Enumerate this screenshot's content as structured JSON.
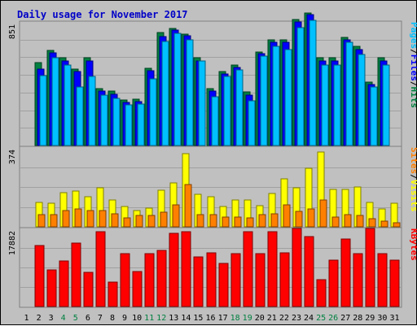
{
  "chart_data": {
    "type": "bar",
    "title": "Daily usage for November 2017",
    "categories": [
      "1",
      "2",
      "3",
      "4",
      "5",
      "6",
      "7",
      "8",
      "9",
      "10",
      "11",
      "12",
      "13",
      "14",
      "15",
      "16",
      "17",
      "18",
      "19",
      "20",
      "21",
      "22",
      "23",
      "24",
      "25",
      "26",
      "27",
      "28",
      "29",
      "30",
      "31"
    ],
    "weekend_days": [
      "4",
      "5",
      "11",
      "12",
      "18",
      "19",
      "25",
      "26"
    ],
    "panels": [
      {
        "name": "top",
        "ymax": 851,
        "ymax_label": "851",
        "side_label": [
          "Pages",
          "/",
          "Files",
          "/",
          "Hits"
        ],
        "series": [
          {
            "name": "Hits",
            "color": "#008040",
            "values": [
              0,
              596,
              680,
              628,
              545,
              628,
              406,
              392,
              326,
              333,
              554,
              812,
              841,
              800,
              628,
              406,
              532,
              579,
              382,
              670,
              758,
              758,
              904,
              953,
              628,
              628,
              776,
              712,
              453,
              628,
              0
            ]
          },
          {
            "name": "Files",
            "color": "#0000ff",
            "values": [
              0,
              549,
              663,
              609,
              529,
              609,
              390,
              369,
              311,
              312,
              538,
              780,
              825,
              786,
              609,
              391,
              513,
              560,
              360,
              656,
              739,
              738,
              888,
              937,
              609,
              609,
              757,
              689,
              436,
              609,
              0
            ]
          },
          {
            "name": "Pages",
            "color": "#00c0ff",
            "values": [
              0,
              502,
              628,
              579,
              421,
              495,
              361,
              338,
              291,
              295,
              476,
              746,
              806,
              758,
              609,
              352,
              494,
              541,
              322,
              639,
              712,
              689,
              847,
              899,
              579,
              579,
              739,
              651,
              418,
              579,
              0
            ]
          }
        ]
      },
      {
        "name": "middle",
        "ymax": 374,
        "ymax_label": "374",
        "side_label": [
          "Sites",
          "/",
          "Visits"
        ],
        "series": [
          {
            "name": "Visits",
            "color": "#ffff00",
            "values": [
              0,
              122,
              117,
              172,
              177,
              150,
              194,
              133,
              100,
              83,
              94,
              183,
              218,
              367,
              161,
              150,
              100,
              133,
              133,
              105,
              167,
              238,
              194,
              294,
              372,
              187,
              187,
              200,
              122,
              89,
              117
            ]
          },
          {
            "name": "Sites",
            "color": "#ff8000",
            "values": [
              0,
              61,
              61,
              83,
              89,
              83,
              83,
              67,
              44,
              56,
              56,
              72,
              111,
              211,
              61,
              61,
              50,
              50,
              44,
              61,
              67,
              111,
              78,
              89,
              133,
              50,
              61,
              56,
              39,
              28,
              22
            ]
          }
        ]
      },
      {
        "name": "bottom",
        "ymax": 17882,
        "ymax_label": "17882",
        "side_label": [
          "KBytes"
        ],
        "series": [
          {
            "name": "KBytes",
            "color": "#ff0000",
            "values": [
              0,
              14850,
              8990,
              11140,
              15490,
              8340,
              18280,
              6010,
              12840,
              8460,
              12840,
              13790,
              17950,
              18340,
              12030,
              13040,
              10540,
              12940,
              18340,
              12940,
              18270,
              13040,
              19100,
              17050,
              6560,
              11260,
              16570,
              12940,
              19000,
              12940,
              11390
            ]
          }
        ]
      }
    ]
  }
}
